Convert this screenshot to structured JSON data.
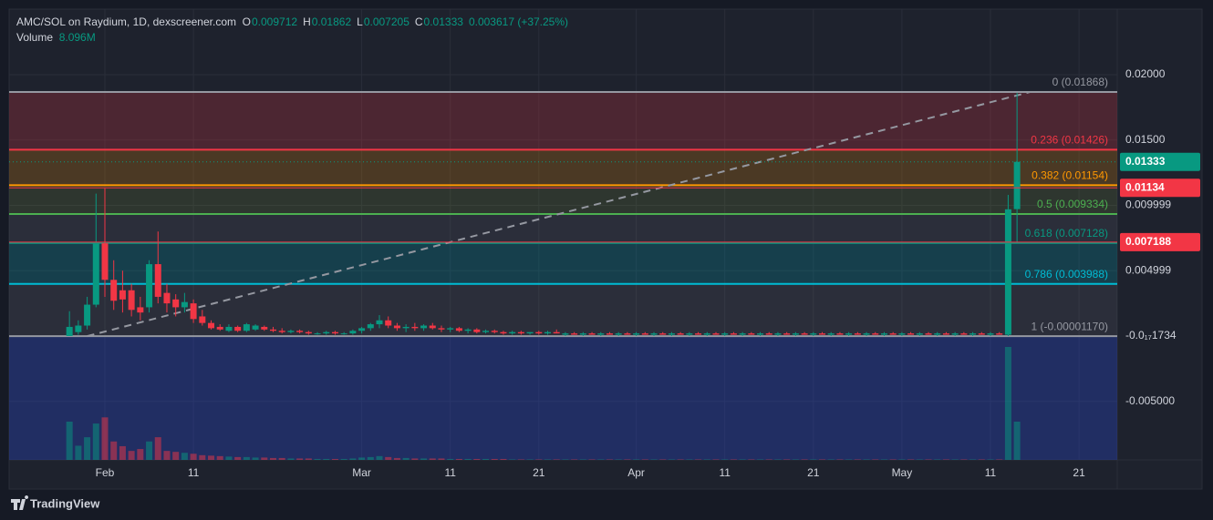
{
  "chart_data": {
    "type": "candlestick",
    "title": "AMC/SOL on Raydium, 1D, dexscreener.com",
    "ohlc_letters": {
      "o": "O",
      "h": "H",
      "l": "L",
      "c": "C"
    },
    "change_label": "0.003617 (+37.25%)",
    "up_color": "#089981",
    "down_color": "#f23645",
    "categories": [
      null,
      null,
      null,
      null,
      "Feb",
      null,
      null,
      null,
      null,
      null,
      null,
      null,
      null,
      null,
      "11",
      null,
      null,
      null,
      null,
      null,
      null,
      null,
      null,
      null,
      null,
      null,
      null,
      null,
      null,
      null,
      null,
      null,
      null,
      "Mar",
      null,
      null,
      null,
      null,
      null,
      null,
      null,
      null,
      null,
      "11",
      null,
      null,
      null,
      null,
      null,
      null,
      null,
      null,
      null,
      "21",
      null,
      null,
      null,
      null,
      null,
      null,
      null,
      null,
      null,
      null,
      "Apr",
      null,
      null,
      null,
      null,
      null,
      null,
      null,
      null,
      null,
      "11",
      null,
      null,
      null,
      null,
      null,
      null,
      null,
      null,
      null,
      "21",
      null,
      null,
      null,
      null,
      null,
      null,
      null,
      null,
      null,
      "May",
      null,
      null,
      null,
      null,
      null,
      null,
      null,
      null,
      null,
      "11",
      null,
      null,
      null,
      null,
      null,
      null,
      null,
      null,
      null,
      "21"
    ],
    "open": [
      0,
      0.0003,
      0.0008,
      0.0024,
      0.0071,
      0.0043,
      0.0035,
      0.0035,
      0.0022,
      0.0022,
      0.0055,
      0.0033,
      0.0028,
      0.0022,
      0.0025,
      0.0015,
      0.001,
      0.0007,
      0.0004,
      0.0007,
      0.0004,
      0.0005,
      0.0007,
      0.0005,
      0.0004,
      0.0003,
      0.0004,
      0.0003,
      0.0002,
      0.0002,
      0.0003,
      0.0002,
      0.0002,
      0.0004,
      0.0006,
      0.0009,
      0.0012,
      0.0008,
      0.0006,
      0.0007,
      0.0006,
      0.0008,
      0.0006,
      0.0005,
      0.0006,
      0.0004,
      0.0005,
      0.0003,
      0.0004,
      0.0003,
      0.0002,
      0.0003,
      0.0002,
      0.0003,
      0.0002,
      0.0003,
      0.0001,
      0.0002,
      0.0001,
      0.0002,
      0.0001,
      0.0002,
      0.0001,
      0.0002,
      0.0001,
      0.0002,
      0.0001,
      0.0002,
      0.0001,
      0.0002,
      0.0001,
      0.0002,
      0.0001,
      0.0002,
      0.0001,
      0.0002,
      0.0001,
      0.0002,
      0.0001,
      0.0002,
      0.0001,
      0.0002,
      0.0001,
      0.0002,
      0.0001,
      0.0002,
      0.0001,
      0.0002,
      0.0001,
      0.0002,
      0.0001,
      0.0002,
      0.0001,
      0.0002,
      0.0001,
      0.0002,
      0.0001,
      0.0002,
      0.0001,
      0.0002,
      0.0001,
      0.0002,
      0.0001,
      0.0002,
      0.0001,
      0.0002,
      0.0001,
      0.009712,
      null,
      null,
      null,
      null,
      null,
      null,
      null
    ],
    "high": [
      0.0019,
      0.0012,
      0.003,
      0.0109,
      0.0113,
      0.0058,
      0.005,
      0.004,
      0.003,
      0.0058,
      0.008,
      0.004,
      0.0032,
      0.0033,
      0.0028,
      0.002,
      0.0012,
      0.0009,
      0.0009,
      0.0008,
      0.001,
      0.0009,
      0.0008,
      0.0007,
      0.0006,
      0.0005,
      0.0005,
      0.0004,
      0.0003,
      0.0004,
      0.0004,
      0.0003,
      0.0005,
      0.0007,
      0.001,
      0.0016,
      0.0015,
      0.001,
      0.0009,
      0.001,
      0.0009,
      0.001,
      0.0008,
      0.0007,
      0.0007,
      0.0006,
      0.0006,
      0.0005,
      0.0005,
      0.0004,
      0.0004,
      0.0004,
      0.0003,
      0.0004,
      0.0004,
      0.0005,
      0.0003,
      0.0003,
      0.0003,
      0.0003,
      0.0003,
      0.0003,
      0.0003,
      0.0003,
      0.0003,
      0.0003,
      0.0003,
      0.0003,
      0.0003,
      0.0003,
      0.0003,
      0.0003,
      0.0003,
      0.0003,
      0.0003,
      0.0003,
      0.0003,
      0.0003,
      0.0003,
      0.0003,
      0.0003,
      0.0003,
      0.0003,
      0.0003,
      0.0003,
      0.0003,
      0.0003,
      0.0003,
      0.0003,
      0.0003,
      0.0003,
      0.0003,
      0.0003,
      0.0003,
      0.0003,
      0.0003,
      0.0003,
      0.0003,
      0.0003,
      0.0003,
      0.0003,
      0.0003,
      0.0003,
      0.0003,
      0.0003,
      0.0003,
      0.0108,
      0.01862,
      null,
      null,
      null,
      null,
      null,
      null,
      null
    ],
    "low": [
      0,
      0.0001,
      0.0005,
      0.0022,
      0.003,
      0.002,
      0.0018,
      0.0015,
      0.0012,
      0.0018,
      0.0025,
      0.0018,
      0.0015,
      0.0018,
      0.001,
      0.0008,
      0.0005,
      0.0004,
      0.0003,
      0.0003,
      0.0003,
      0.0004,
      0.0004,
      0.0003,
      0.0002,
      0.0002,
      0.0002,
      0.0001,
      0.0001,
      0.0001,
      0.0001,
      0.0001,
      0.0001,
      0.0002,
      0.0004,
      0.0006,
      0.0006,
      0.0004,
      0.0003,
      0.0004,
      0.0004,
      0.0005,
      0.0003,
      0.0003,
      0.0003,
      0.0002,
      0.0002,
      0.0002,
      0.0002,
      0.0001,
      0.0001,
      0.0001,
      0.0001,
      0.0001,
      0.0001,
      0.0002,
      0,
      0.0001,
      0,
      0.0001,
      0,
      0.0001,
      0,
      0.0001,
      0,
      0.0001,
      0,
      0.0001,
      0,
      0.0001,
      0,
      0.0001,
      0,
      0.0001,
      0,
      0.0001,
      0,
      0.0001,
      0,
      0.0001,
      0,
      0.0001,
      0,
      0.0001,
      0,
      0.0001,
      0,
      0.0001,
      0,
      0.0001,
      0,
      0.0001,
      0,
      0.0001,
      0,
      0.0001,
      0,
      0.0001,
      0,
      0.0001,
      0,
      0.0001,
      0,
      0.0001,
      0,
      0.0001,
      0,
      0.007205,
      null,
      null,
      null,
      null,
      null,
      null,
      null
    ],
    "close": [
      0.0007,
      0.0008,
      0.0024,
      0.0071,
      0.0043,
      0.0027,
      0.0028,
      0.002,
      0.0018,
      0.0055,
      0.003,
      0.0025,
      0.0022,
      0.0026,
      0.0013,
      0.001,
      0.0006,
      0.0005,
      0.0007,
      0.0004,
      0.0009,
      0.0008,
      0.0005,
      0.0004,
      0.0003,
      0.0004,
      0.0003,
      0.0002,
      0.0002,
      0.0003,
      0.0002,
      0.0002,
      0.0004,
      0.0006,
      0.0009,
      0.0012,
      0.0008,
      0.0006,
      0.0007,
      0.0006,
      0.0008,
      0.0006,
      0.0005,
      0.0006,
      0.0004,
      0.0005,
      0.0003,
      0.0004,
      0.0003,
      0.0002,
      0.0003,
      0.0002,
      0.0003,
      0.0002,
      0.0003,
      0.0002,
      0.0002,
      0.0001,
      0.0002,
      0.0001,
      0.0002,
      0.0001,
      0.0002,
      0.0001,
      0.0002,
      0.0001,
      0.0002,
      0.0001,
      0.0002,
      0.0001,
      0.0002,
      0.0001,
      0.0002,
      0.0001,
      0.0002,
      0.0001,
      0.0002,
      0.0001,
      0.0002,
      0.0001,
      0.0002,
      0.0001,
      0.0002,
      0.0001,
      0.0002,
      0.0001,
      0.0002,
      0.0001,
      0.0002,
      0.0001,
      0.0002,
      0.0001,
      0.0002,
      0.0001,
      0.0002,
      0.0001,
      0.0002,
      0.0001,
      0.0002,
      0.0001,
      0.0002,
      0.0001,
      0.0002,
      0.0001,
      0.0002,
      0.0001,
      0.0097,
      0.01333,
      null,
      null,
      null,
      null,
      null,
      null,
      null
    ],
    "volume": {
      "name": "Volume",
      "last_label": "8.096M",
      "values": [
        8100000,
        3000000,
        4800000,
        7700000,
        9000000,
        3900000,
        2900000,
        1900000,
        2300000,
        3900000,
        4800000,
        1900000,
        1700000,
        1500000,
        1300000,
        1000000,
        900000,
        800000,
        700000,
        600000,
        600000,
        500000,
        500000,
        400000,
        400000,
        300000,
        300000,
        300000,
        200000,
        200000,
        200000,
        200000,
        300000,
        500000,
        600000,
        800000,
        600000,
        400000,
        400000,
        300000,
        300000,
        300000,
        300000,
        200000,
        200000,
        200000,
        200000,
        200000,
        200000,
        200000,
        100000,
        100000,
        100000,
        100000,
        100000,
        100000,
        100000,
        100000,
        100000,
        100000,
        100000,
        100000,
        100000,
        100000,
        100000,
        100000,
        100000,
        100000,
        100000,
        100000,
        100000,
        100000,
        100000,
        100000,
        100000,
        100000,
        100000,
        100000,
        100000,
        100000,
        100000,
        100000,
        100000,
        100000,
        100000,
        100000,
        100000,
        100000,
        100000,
        100000,
        100000,
        100000,
        100000,
        100000,
        100000,
        100000,
        100000,
        100000,
        100000,
        100000,
        100000,
        100000,
        100000,
        100000,
        100000,
        100000,
        23900000,
        8096000,
        null,
        null,
        null,
        null,
        null,
        null,
        null
      ]
    },
    "ylim": [
      -0.00948,
      0.02502
    ],
    "yticks": [
      {
        "value": 0.02,
        "label": "0.02000"
      },
      {
        "value": 0.015,
        "label": "0.01500"
      },
      0.009999,
      0.004999,
      {
        "value": -1.734e-18,
        "label": "-0.0₁₇1734"
      },
      {
        "value": -0.005,
        "label": "-0.005000"
      }
    ],
    "grid": true,
    "fib_levels": [
      {
        "ratio": 0,
        "value": 0.01868,
        "label": "0 (0.01868)",
        "color": "#9598a1",
        "fill": "rgba(242,54,69,0.22)"
      },
      {
        "ratio": 0.236,
        "value": 0.01426,
        "label": "0.236 (0.01426)",
        "color": "#f23645",
        "fill": "rgba(255,152,0,0.2)"
      },
      {
        "ratio": 0.382,
        "value": 0.01154,
        "label": "0.382 (0.01154)",
        "color": "#ff9800",
        "fill": "rgba(120,150,60,0.18)"
      },
      {
        "ratio": 0.5,
        "value": 0.009334,
        "label": "0.5 (0.009334)",
        "color": "#4caf50",
        "fill": "rgba(120,123,134,0.15)"
      },
      {
        "ratio": 0.618,
        "value": 0.007128,
        "label": "0.618 (0.007128)",
        "color": "#089981",
        "fill": "rgba(0,150,170,0.25)"
      },
      {
        "ratio": 0.786,
        "value": 0.003988,
        "label": "0.786 (0.003988)",
        "color": "#00bcd4",
        "fill": "rgba(120,123,134,0.15)"
      },
      {
        "ratio": 1,
        "value": -1.17e-05,
        "label": "1 (-0.00001170)",
        "color": "#9598a1",
        "fill": "rgba(41,70,200,0.35)"
      }
    ],
    "price_labels": [
      {
        "value": 0.01333,
        "color": "#089981"
      },
      {
        "value": 0.01134,
        "color": "#f23645"
      },
      {
        "value": 0.007188,
        "color": "#f23645"
      }
    ],
    "footer": "TradingView"
  }
}
